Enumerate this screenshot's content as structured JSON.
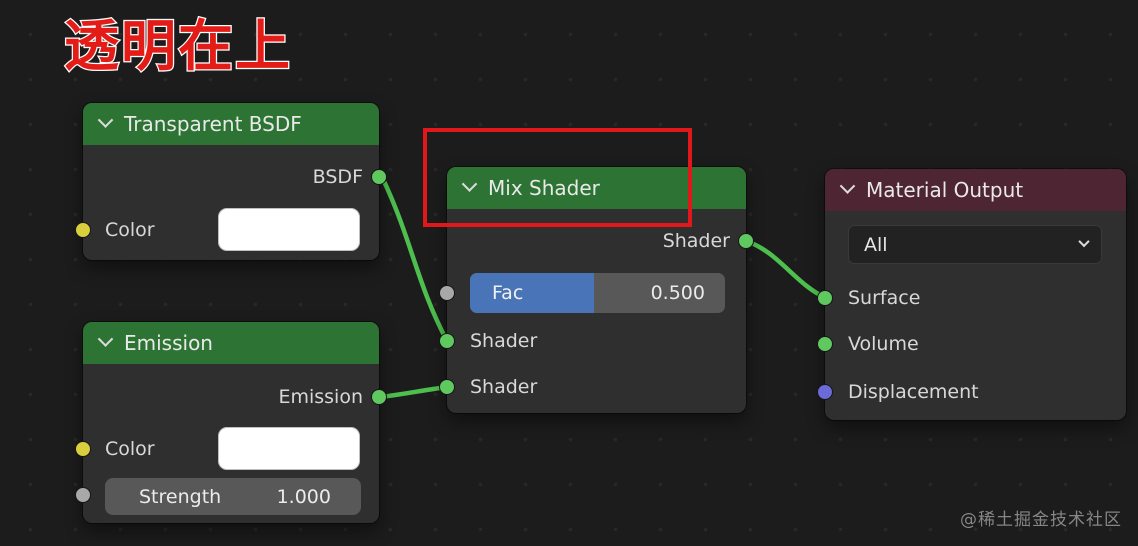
{
  "title": "透明在上",
  "watermark": "@稀土掘金技术社区",
  "colors": {
    "background": "#1c1c1c",
    "node_body": "#2f2f30",
    "shader_header_green": "#2d7434",
    "output_header_maroon": "#4e2532",
    "wire_green": "#4ebf4e",
    "socket_green": "#5fc95f",
    "socket_yellow": "#d9cf3d",
    "socket_gray": "#a8a8a8",
    "socket_vector_violet": "#6a6ad8",
    "slider_blue": "#4a74b8",
    "annotation_red": "#e0181c"
  },
  "nodes": {
    "transparent_bsdf": {
      "title": "Transparent BSDF",
      "output_label": "BSDF",
      "color_label": "Color"
    },
    "emission": {
      "title": "Emission",
      "output_label": "Emission",
      "color_label": "Color",
      "strength_label": "Strength",
      "strength_value": "1.000"
    },
    "mix_shader": {
      "title": "Mix Shader",
      "output_label": "Shader",
      "fac_label": "Fac",
      "fac_value": "0.500",
      "fac_fill_percent": 48.6,
      "input1_label": "Shader",
      "input2_label": "Shader"
    },
    "material_output": {
      "title": "Material Output",
      "target_value": "All",
      "surface_label": "Surface",
      "volume_label": "Volume",
      "displacement_label": "Displacement"
    }
  }
}
